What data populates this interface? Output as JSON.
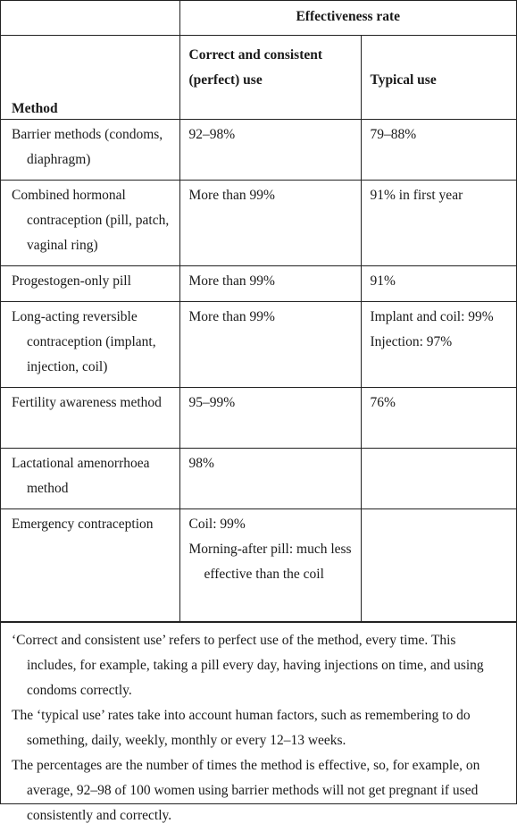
{
  "table": {
    "group_header": "Effectiveness rate",
    "columns": {
      "method": "Method",
      "correct": "Correct and consistent (perfect) use",
      "typical": "Typical use"
    },
    "rows": [
      {
        "method": "Barrier methods (condoms, diaphragm)",
        "correct": [
          "92–98%"
        ],
        "typical": [
          "79–88%"
        ]
      },
      {
        "method": "Combined hormonal contraception (pill, patch, vaginal ring)",
        "correct": [
          "More than 99%"
        ],
        "typical": [
          "91% in first year"
        ]
      },
      {
        "method": "Progestogen-only pill",
        "correct": [
          "More than 99%"
        ],
        "typical": [
          "91%"
        ]
      },
      {
        "method": "Long-acting reversible contraception (implant, injection, coil)",
        "correct": [
          "More than 99%"
        ],
        "typical": [
          "Implant and coil: 99%",
          "Injection: 97%"
        ]
      },
      {
        "method": "Fertility awareness method",
        "correct": [
          "95–99%"
        ],
        "typical": [
          "76%"
        ]
      },
      {
        "method": "Lactational amenorrhoea method",
        "correct": [
          "98%"
        ],
        "typical": []
      },
      {
        "method": "Emergency contraception",
        "correct": [
          "Coil: 99%",
          "Morning-after pill: much less effective than the coil"
        ],
        "typical": []
      }
    ]
  },
  "notes": [
    "‘Correct and consistent use’ refers to perfect use of the method, every time. This includes, for example, taking a pill every day, having injections on time, and using condoms correctly.",
    "The ‘typical use’ rates take into account human factors, such as remembering to do something, daily, weekly, monthly or every 12–13 weeks.",
    "The percentages are the number of times the method is effective, so, for example, on average, 92–98 of 100 women using barrier methods will not get pregnant if used consistently and correctly."
  ]
}
